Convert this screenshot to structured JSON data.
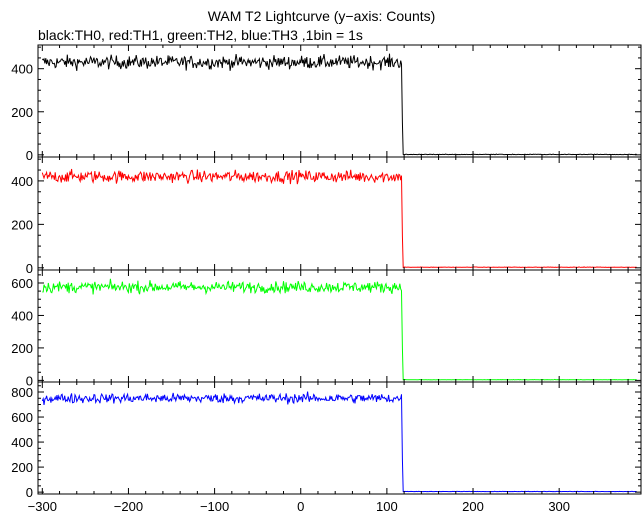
{
  "title": "WAM T2 Lightcurve (y−axis: Counts)",
  "subtitle": "black:TH0, red:TH1, green:TH2, blue:TH3 ,1bin = 1s",
  "chart_data": {
    "type": "line",
    "title": "WAM T2 Lightcurve (y−axis: Counts)",
    "subtitle": "black:TH0, red:TH1, green:TH2, blue:TH3 ,1bin = 1s",
    "xlim": [
      -305,
      395
    ],
    "x_ticks": [
      -300,
      -200,
      -100,
      0,
      100,
      200,
      300
    ],
    "x_tick_labels": [
      "−300",
      "−200",
      "−100",
      "0",
      "100",
      "200",
      "300"
    ],
    "step_x": 118,
    "panels": [
      {
        "name": "TH0",
        "color": "#000000",
        "ylim": [
          -10,
          510
        ],
        "y_ticks": [
          0,
          200,
          400
        ],
        "y_tick_labels": [
          "0",
          "200",
          "400"
        ],
        "level_before": 430,
        "noise": 22,
        "level_after": 1
      },
      {
        "name": "TH1",
        "color": "#ff0000",
        "ylim": [
          -10,
          510
        ],
        "y_ticks": [
          0,
          200,
          400
        ],
        "y_tick_labels": [
          "0",
          "200",
          "400"
        ],
        "level_before": 420,
        "noise": 20,
        "level_after": 2
      },
      {
        "name": "TH2",
        "color": "#00ff00",
        "ylim": [
          -10,
          680
        ],
        "y_ticks": [
          0,
          200,
          400,
          600
        ],
        "y_tick_labels": [
          "0",
          "200",
          "400",
          "600"
        ],
        "level_before": 575,
        "noise": 25,
        "level_after": 3
      },
      {
        "name": "TH3",
        "color": "#0000ff",
        "ylim": [
          -15,
          880
        ],
        "y_ticks": [
          0,
          200,
          400,
          600,
          800
        ],
        "y_tick_labels": [
          "0",
          "200",
          "400",
          "600",
          "800"
        ],
        "level_before": 750,
        "noise": 28,
        "level_after": 4
      }
    ]
  }
}
